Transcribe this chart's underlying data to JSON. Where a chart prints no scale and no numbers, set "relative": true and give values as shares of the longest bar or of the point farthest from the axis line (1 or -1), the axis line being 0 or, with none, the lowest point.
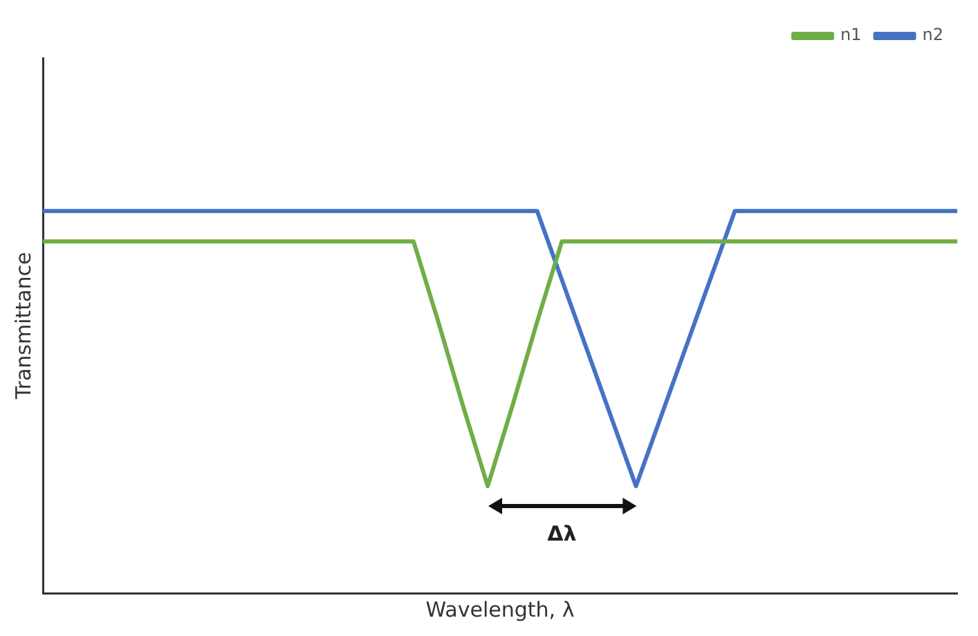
{
  "chart_data": {
    "type": "line",
    "relative": true,
    "xlabel": "Wavelength, λ",
    "ylabel": "Transmittance",
    "categories": [
      null,
      null,
      null,
      null,
      null,
      null,
      null,
      null,
      null,
      null,
      null,
      null,
      null,
      null,
      null,
      null,
      null,
      null,
      null,
      null,
      null,
      null,
      null,
      null,
      null,
      null,
      null,
      null,
      null,
      null,
      null,
      null,
      null,
      null,
      null,
      null,
      null,
      null
    ],
    "series": [
      {
        "name": "n1",
        "color": "#70ad47",
        "values": [
          0.92,
          0.92,
          0.92,
          0.92,
          0.92,
          0.92,
          0.92,
          0.92,
          0.92,
          0.92,
          0.92,
          0.92,
          0.92,
          0.92,
          0.92,
          0.92,
          0.71,
          0.49,
          0.28,
          0.49,
          0.71,
          0.92,
          0.92,
          0.92,
          0.92,
          0.92,
          0.92,
          0.92,
          0.92,
          0.92,
          0.92,
          0.92,
          0.92,
          0.92,
          0.92,
          0.92,
          0.92,
          0.92
        ]
      },
      {
        "name": "n2",
        "color": "#4472c4",
        "values": [
          1,
          1,
          1,
          1,
          1,
          1,
          1,
          1,
          1,
          1,
          1,
          1,
          1,
          1,
          1,
          1,
          1,
          1,
          1,
          1,
          1,
          0.82,
          0.64,
          0.46,
          0.28,
          0.46,
          0.64,
          0.82,
          1,
          1,
          1,
          1,
          1,
          1,
          1,
          1,
          1,
          1
        ]
      }
    ],
    "annotations": [
      "Δλ"
    ],
    "legend": "top right",
    "grid": false,
    "marker": "none",
    "line_style": "solid"
  }
}
